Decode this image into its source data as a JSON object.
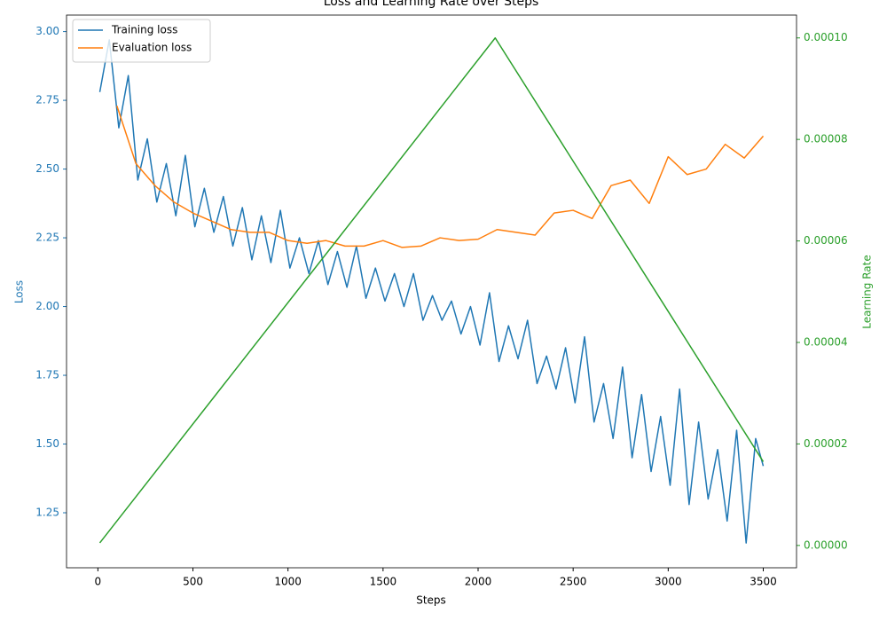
{
  "chart_data": {
    "type": "line",
    "title": "Loss and Learning Rate over Steps",
    "xlabel": "Steps",
    "ylabel": "Loss",
    "y2label": "Learning Rate",
    "xlim": [
      -165,
      3675
    ],
    "xticks": [
      0,
      500,
      1000,
      1500,
      2000,
      2500,
      3000,
      3500
    ],
    "ylim": [
      1.05,
      3.06
    ],
    "yticks": [
      1.25,
      {
        "value": 1.5,
        "label": "1.50"
      },
      1.75,
      {
        "value": 2,
        "label": "2.00"
      },
      2.25,
      {
        "value": 2.5,
        "label": "2.50"
      },
      2.75,
      {
        "value": 3,
        "label": "3.00"
      }
    ],
    "y2lim": [
      -4.4e-06,
      0.0001045
    ],
    "y2ticks": [
      {
        "value": 0,
        "label": "0.00000"
      },
      {
        "value": 2e-05,
        "label": "0.00002"
      },
      {
        "value": 4e-05,
        "label": "0.00004"
      },
      {
        "value": 6e-05,
        "label": "0.00006"
      },
      {
        "value": 8e-05,
        "label": "0.00008"
      },
      {
        "value": 0.0001,
        "label": "0.00010"
      }
    ],
    "legend": "upper left",
    "series": [
      {
        "name": "Training loss",
        "color": "#1f77b4",
        "x": [
          10,
          60,
          110,
          160,
          210,
          260,
          310,
          360,
          410,
          460,
          510,
          560,
          610,
          660,
          710,
          760,
          810,
          860,
          910,
          960,
          1010,
          1060,
          1110,
          1160,
          1210,
          1260,
          1310,
          1360,
          1410,
          1460,
          1510,
          1560,
          1610,
          1660,
          1710,
          1760,
          1810,
          1860,
          1910,
          1960,
          2010,
          2060,
          2110,
          2160,
          2210,
          2260,
          2310,
          2360,
          2410,
          2460,
          2510,
          2560,
          2610,
          2660,
          2710,
          2760,
          2810,
          2860,
          2910,
          2960,
          3010,
          3060,
          3110,
          3160,
          3210,
          3260,
          3310,
          3360,
          3410,
          3460,
          3500
        ],
        "values": [
          2.78,
          2.97,
          2.65,
          2.84,
          2.46,
          2.61,
          2.38,
          2.52,
          2.33,
          2.55,
          2.29,
          2.43,
          2.27,
          2.4,
          2.22,
          2.36,
          2.17,
          2.33,
          2.16,
          2.35,
          2.14,
          2.25,
          2.12,
          2.24,
          2.08,
          2.2,
          2.07,
          2.22,
          2.03,
          2.14,
          2.02,
          2.12,
          2.0,
          2.12,
          1.95,
          2.04,
          1.95,
          2.02,
          1.9,
          2.0,
          1.86,
          2.05,
          1.8,
          1.93,
          1.81,
          1.95,
          1.72,
          1.82,
          1.7,
          1.85,
          1.65,
          1.89,
          1.58,
          1.72,
          1.52,
          1.78,
          1.45,
          1.68,
          1.4,
          1.6,
          1.35,
          1.7,
          1.28,
          1.58,
          1.3,
          1.48,
          1.22,
          1.55,
          1.14,
          1.52,
          1.42
        ]
      },
      {
        "name": "Evaluation loss",
        "color": "#ff7f0e",
        "x": [
          100,
          200,
          300,
          400,
          500,
          600,
          700,
          800,
          900,
          1000,
          1100,
          1200,
          1300,
          1400,
          1500,
          1600,
          1700,
          1800,
          1900,
          2000,
          2100,
          2200,
          2300,
          2400,
          2500,
          2600,
          2700,
          2800,
          2900,
          3000,
          3100,
          3200,
          3300,
          3400,
          3500
        ],
        "values": [
          2.73,
          2.52,
          2.44,
          2.38,
          2.34,
          2.31,
          2.28,
          2.27,
          2.27,
          2.24,
          2.23,
          2.24,
          2.22,
          2.22,
          2.24,
          2.215,
          2.22,
          2.25,
          2.24,
          2.245,
          2.28,
          2.27,
          2.26,
          2.34,
          2.35,
          2.32,
          2.44,
          2.46,
          2.375,
          2.545,
          2.48,
          2.5,
          2.59,
          2.54,
          2.62
        ]
      },
      {
        "color": "#2ca02c",
        "axis": "y2",
        "x": [
          10,
          2090,
          3500
        ],
        "values": [
          5e-07,
          0.0001,
          1.65e-05
        ]
      }
    ]
  }
}
